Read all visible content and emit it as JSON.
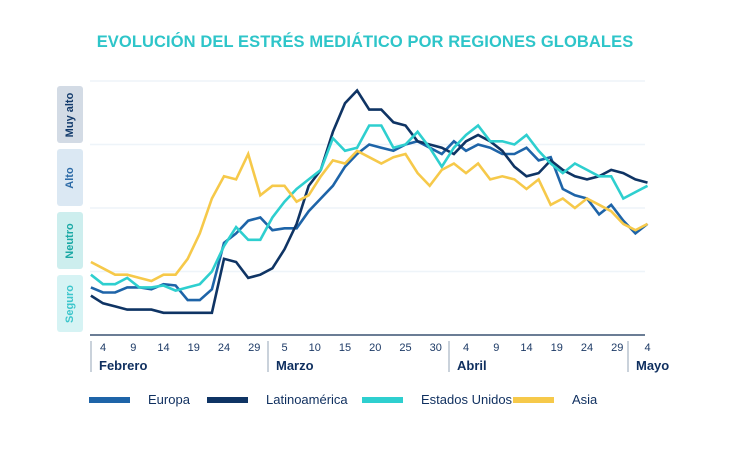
{
  "chart_data": {
    "type": "line",
    "title": "EVOLUCIÓN DEL ESTRÉS MEDIÁTICO POR REGIONES GLOBALES",
    "xlabel": "",
    "ylabel": "",
    "ylim": [
      0,
      4
    ],
    "y_levels": [
      {
        "label": "Seguro",
        "range": [
          0,
          1
        ],
        "bg": "#d6f3f4",
        "fg": "#3cc6cc"
      },
      {
        "label": "Neutro",
        "range": [
          1,
          2
        ],
        "bg": "#cdeeee",
        "fg": "#1aa9a5"
      },
      {
        "label": "Alto",
        "range": [
          2,
          3
        ],
        "bg": "#dbe8f3",
        "fg": "#2c6aa6"
      },
      {
        "label": "Muy alto",
        "range": [
          3,
          4
        ],
        "bg": "#d3dbe5",
        "fg": "#123a6b"
      }
    ],
    "grid": true,
    "x_start_day": 2,
    "x_step_days": 2,
    "x_note": "days counted from 1 Feb; last point = 4 May",
    "x_ticks": [
      {
        "day": 4,
        "label": "4"
      },
      {
        "day": 9,
        "label": "9"
      },
      {
        "day": 14,
        "label": "14"
      },
      {
        "day": 19,
        "label": "19"
      },
      {
        "day": 24,
        "label": "24"
      },
      {
        "day": 29,
        "label": "29"
      },
      {
        "day": 34,
        "label": "5"
      },
      {
        "day": 39,
        "label": "10"
      },
      {
        "day": 44,
        "label": "15"
      },
      {
        "day": 49,
        "label": "20"
      },
      {
        "day": 54,
        "label": "25"
      },
      {
        "day": 59,
        "label": "30"
      },
      {
        "day": 64,
        "label": "4"
      },
      {
        "day": 69,
        "label": "9"
      },
      {
        "day": 74,
        "label": "14"
      },
      {
        "day": 79,
        "label": "19"
      },
      {
        "day": 84,
        "label": "24"
      },
      {
        "day": 89,
        "label": "29"
      },
      {
        "day": 94,
        "label": "4"
      }
    ],
    "months": [
      {
        "label": "Febrero",
        "start_day": 1
      },
      {
        "label": "Marzo",
        "start_day": 30
      },
      {
        "label": "Abril",
        "start_day": 61
      },
      {
        "label": "Mayo",
        "start_day": 91
      }
    ],
    "legend_position": "bottom",
    "series": [
      {
        "name": "Europa",
        "color": "#1e64a8",
        "values": [
          0.75,
          0.67,
          0.67,
          0.75,
          0.75,
          0.72,
          0.8,
          0.78,
          0.55,
          0.55,
          0.72,
          1.45,
          1.6,
          1.8,
          1.85,
          1.65,
          1.68,
          1.68,
          1.95,
          2.15,
          2.35,
          2.65,
          2.85,
          3.0,
          2.95,
          2.9,
          3.0,
          3.05,
          2.95,
          2.85,
          3.05,
          2.9,
          3.0,
          2.95,
          2.85,
          2.85,
          2.95,
          2.75,
          2.8,
          2.3,
          2.2,
          2.15,
          1.9,
          2.05,
          1.8,
          1.6,
          1.75
        ]
      },
      {
        "name": "Latinoamérica",
        "color": "#0f3464",
        "values": [
          0.62,
          0.5,
          0.45,
          0.4,
          0.4,
          0.4,
          0.35,
          0.35,
          0.35,
          0.35,
          0.35,
          1.2,
          1.15,
          0.9,
          0.95,
          1.05,
          1.35,
          1.75,
          2.35,
          2.6,
          3.2,
          3.65,
          3.85,
          3.55,
          3.55,
          3.35,
          3.3,
          3.05,
          3.0,
          2.95,
          2.85,
          3.05,
          3.15,
          3.05,
          2.9,
          2.65,
          2.5,
          2.55,
          2.75,
          2.6,
          2.5,
          2.45,
          2.5,
          2.6,
          2.55,
          2.45,
          2.4
        ]
      },
      {
        "name": "Estados Unidos",
        "color": "#2ecfcf",
        "values": [
          0.95,
          0.8,
          0.8,
          0.9,
          0.75,
          0.75,
          0.78,
          0.7,
          0.75,
          0.8,
          1.0,
          1.4,
          1.7,
          1.5,
          1.5,
          1.85,
          2.1,
          2.3,
          2.45,
          2.6,
          3.1,
          2.9,
          2.95,
          3.3,
          3.3,
          2.95,
          3.0,
          3.2,
          2.95,
          2.65,
          2.95,
          3.15,
          3.3,
          3.05,
          3.05,
          3.0,
          3.15,
          2.9,
          2.7,
          2.55,
          2.7,
          2.6,
          2.5,
          2.5,
          2.15,
          2.25,
          2.35
        ]
      },
      {
        "name": "Asia",
        "color": "#f6c94a",
        "values": [
          1.15,
          1.05,
          0.95,
          0.95,
          0.9,
          0.85,
          0.95,
          0.95,
          1.2,
          1.6,
          2.15,
          2.5,
          2.45,
          2.85,
          2.2,
          2.35,
          2.35,
          2.1,
          2.2,
          2.5,
          2.75,
          2.7,
          2.9,
          2.8,
          2.7,
          2.8,
          2.85,
          2.55,
          2.35,
          2.6,
          2.7,
          2.55,
          2.7,
          2.45,
          2.5,
          2.45,
          2.3,
          2.45,
          2.05,
          2.15,
          2.0,
          2.15,
          2.05,
          1.95,
          1.75,
          1.65,
          1.75
        ]
      }
    ]
  }
}
